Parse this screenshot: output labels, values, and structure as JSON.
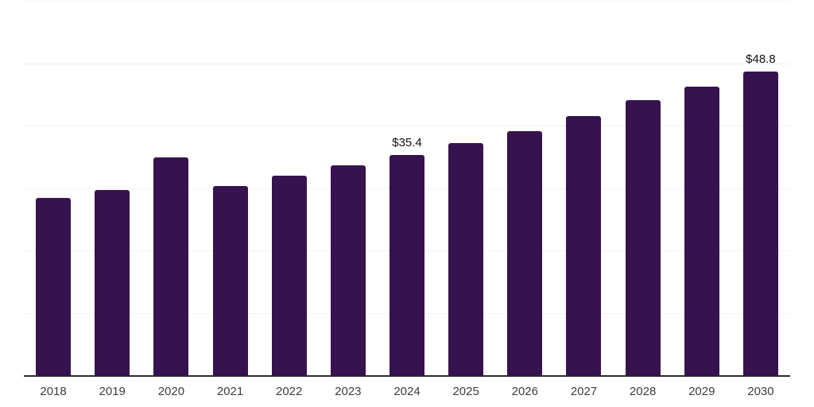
{
  "chart_data": {
    "type": "bar",
    "title": "",
    "xlabel": "",
    "ylabel": "",
    "categories": [
      "2018",
      "2019",
      "2020",
      "2021",
      "2022",
      "2023",
      "2024",
      "2025",
      "2026",
      "2027",
      "2028",
      "2029",
      "2030"
    ],
    "values": [
      28.5,
      29.8,
      35.0,
      30.5,
      32.1,
      33.7,
      35.4,
      37.3,
      39.3,
      41.6,
      44.2,
      46.4,
      48.8
    ],
    "data_labels": {
      "2024": "$35.4",
      "2030": "$48.8"
    },
    "ylim": [
      0,
      60
    ],
    "gridline_values": [
      0,
      10,
      20,
      30,
      40,
      50,
      60
    ],
    "grid": "horizontal",
    "legend": "none",
    "y_tick_labels_visible": false,
    "colors": {
      "bar": "#36134E",
      "axis_line": "#2e2e2e",
      "gridline": "#f2f2f2",
      "data_label": "#111111",
      "tick_label": "#3d3d3d",
      "background": "#ffffff"
    }
  }
}
